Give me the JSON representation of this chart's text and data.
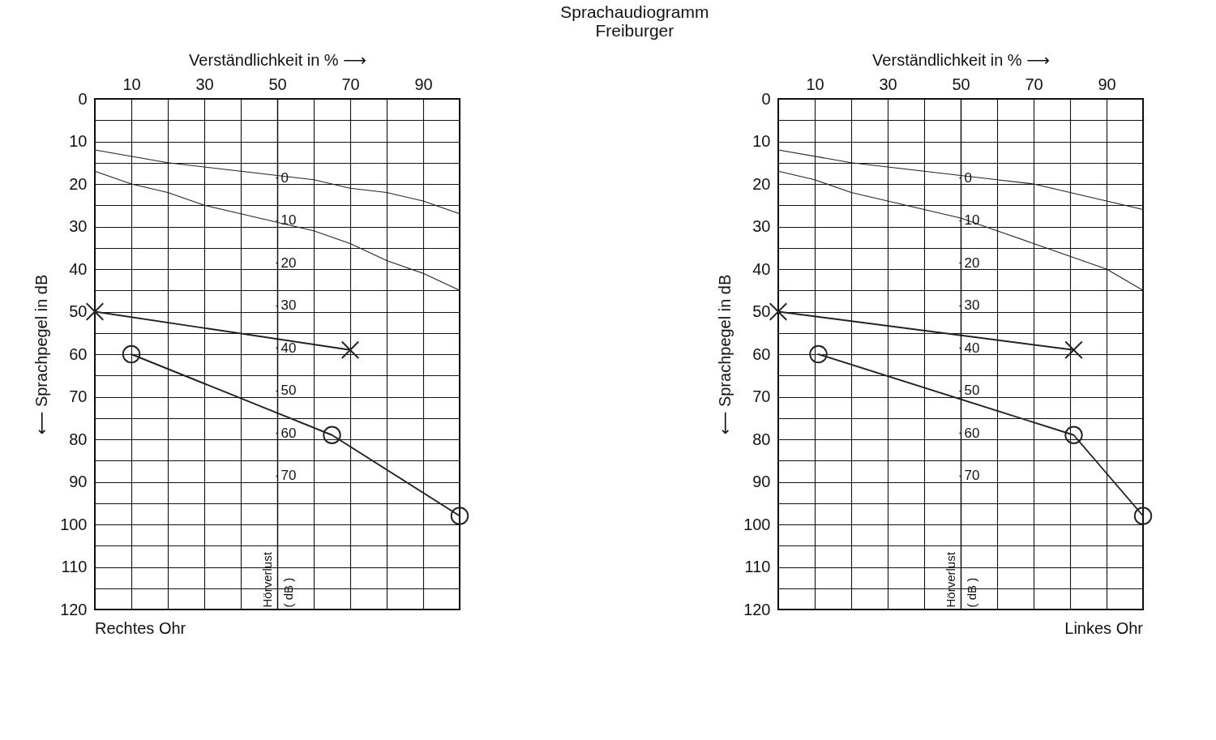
{
  "chart_data": [
    {
      "type": "line",
      "xlabel": "Verständlichkeit in %  ⟶",
      "ylabel": "⟵ Sprachpegel in dB",
      "y2label": "Hörverlust\n( dB )",
      "annotations": [
        "Rechtes Ohr"
      ],
      "xlim": [
        0,
        100
      ],
      "ylim": [
        120,
        0
      ],
      "y2lim": [
        101.5,
        -18.5
      ],
      "xticks": [
        {
          "value": 0,
          "label": null
        },
        10,
        {
          "value": 20,
          "label": null
        },
        30,
        {
          "value": 40,
          "label": null
        },
        50,
        {
          "value": 60,
          "label": null
        },
        70,
        {
          "value": 80,
          "label": null
        },
        90,
        {
          "value": 100,
          "label": null
        }
      ],
      "yticks": [
        0,
        {
          "value": 5,
          "label": null
        },
        10,
        {
          "value": 15,
          "label": null
        },
        20,
        {
          "value": 25,
          "label": null
        },
        30,
        {
          "value": 35,
          "label": null
        },
        40,
        {
          "value": 45,
          "label": null
        },
        50,
        {
          "value": 55,
          "label": null
        },
        60,
        {
          "value": 65,
          "label": null
        },
        70,
        {
          "value": 75,
          "label": null
        },
        80,
        {
          "value": 85,
          "label": null
        },
        90,
        {
          "value": 95,
          "label": null
        },
        100,
        {
          "value": 105,
          "label": null
        },
        110,
        {
          "value": 115,
          "label": null
        },
        120
      ],
      "y2ticks": [
        0,
        10,
        20,
        30,
        40,
        50,
        60,
        70
      ],
      "grid": true,
      "series": [
        {
          "color": "#222222",
          "marker": "none",
          "x": [
            0,
            20,
            40,
            50,
            60,
            70,
            80,
            90,
            100
          ],
          "values": [
            12,
            15,
            17,
            18,
            19,
            21,
            22,
            24,
            27
          ]
        },
        {
          "color": "#222222",
          "marker": "none",
          "x": [
            0,
            10,
            20,
            30,
            40,
            50,
            60,
            70,
            80,
            90,
            100
          ],
          "values": [
            17,
            20,
            22,
            25,
            27,
            29,
            31,
            34,
            38,
            41,
            45
          ]
        },
        {
          "color": "#222222",
          "marker": "cross",
          "x": [
            0,
            70
          ],
          "values": [
            50,
            59
          ]
        },
        {
          "color": "#222222",
          "marker": "circle",
          "x": [
            10,
            65,
            100
          ],
          "values": [
            60,
            79,
            98
          ]
        }
      ]
    },
    {
      "type": "line",
      "title": "Sprachaudiogramm",
      "subtitle": "Freiburger",
      "xlabel": "Verständlichkeit in %  ⟶",
      "ylabel": "⟵ Sprachpegel in dB",
      "y2label": "Hörverlust\n( dB )",
      "annotations": [
        "Linkes Ohr"
      ],
      "xlim": [
        0,
        100
      ],
      "ylim": [
        120,
        0
      ],
      "y2lim": [
        101.5,
        -18.5
      ],
      "xticks": [
        {
          "value": 0,
          "label": null
        },
        10,
        {
          "value": 20,
          "label": null
        },
        30,
        {
          "value": 40,
          "label": null
        },
        50,
        {
          "value": 60,
          "label": null
        },
        70,
        {
          "value": 80,
          "label": null
        },
        90,
        {
          "value": 100,
          "label": null
        }
      ],
      "yticks": [
        0,
        {
          "value": 5,
          "label": null
        },
        10,
        {
          "value": 15,
          "label": null
        },
        20,
        {
          "value": 25,
          "label": null
        },
        30,
        {
          "value": 35,
          "label": null
        },
        40,
        {
          "value": 45,
          "label": null
        },
        50,
        {
          "value": 55,
          "label": null
        },
        60,
        {
          "value": 65,
          "label": null
        },
        70,
        {
          "value": 75,
          "label": null
        },
        80,
        {
          "value": 85,
          "label": null
        },
        90,
        {
          "value": 95,
          "label": null
        },
        100,
        {
          "value": 105,
          "label": null
        },
        110,
        {
          "value": 115,
          "label": null
        },
        120
      ],
      "y2ticks": [
        0,
        10,
        20,
        30,
        40,
        50,
        60,
        70
      ],
      "grid": true,
      "series": [
        {
          "color": "#222222",
          "marker": "none",
          "x": [
            0,
            20,
            40,
            50,
            60,
            70,
            80,
            90,
            100
          ],
          "values": [
            12,
            15,
            17,
            18,
            19,
            20,
            22,
            24,
            26
          ]
        },
        {
          "color": "#222222",
          "marker": "none",
          "x": [
            0,
            10,
            20,
            30,
            40,
            50,
            60,
            70,
            80,
            90,
            100
          ],
          "values": [
            17,
            19,
            22,
            24,
            26,
            28,
            31,
            34,
            37,
            40,
            45
          ]
        },
        {
          "color": "#222222",
          "marker": "cross",
          "x": [
            0,
            81
          ],
          "values": [
            50,
            59
          ]
        },
        {
          "color": "#222222",
          "marker": "circle",
          "x": [
            11,
            81,
            100
          ],
          "values": [
            60,
            79,
            98
          ]
        }
      ]
    }
  ]
}
